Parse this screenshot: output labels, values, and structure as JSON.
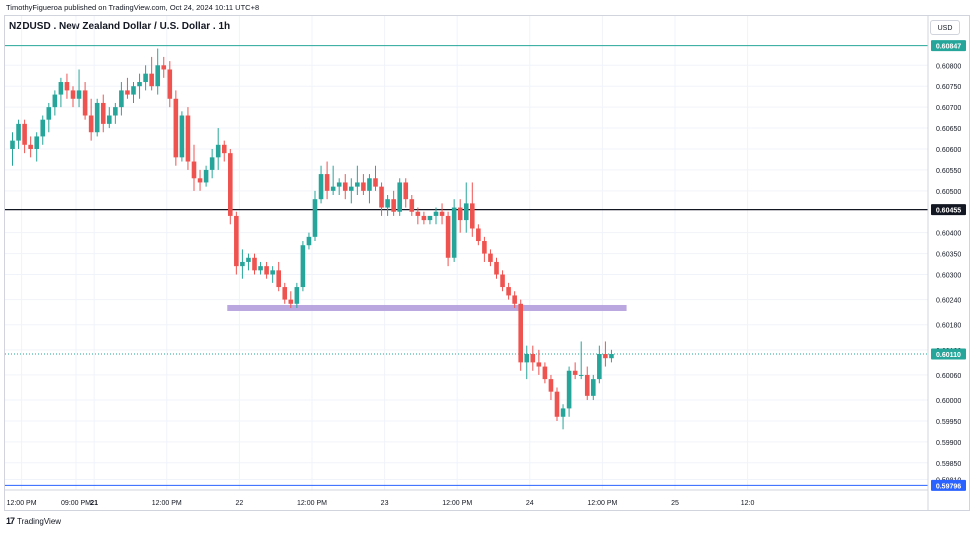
{
  "header": {
    "publisher_line": "TimothyFigueroa published on TradingView.com, Oct 24, 2024 10:11 UTC+8",
    "symbol_title": "NZDUSD . New Zealand Dollar / U.S. Dollar . 1h",
    "currency_button": "USD"
  },
  "footer": {
    "brand": "TradingView",
    "brand_icon": "tradingview-logo-icon"
  },
  "colors": {
    "up": "#26a69a",
    "down": "#ef5350",
    "level_green": "#26a69a",
    "level_black": "#131722",
    "zone": "#b39ddb",
    "price_line": "#26a69a",
    "bottom_line": "#2962ff"
  },
  "chart_data": {
    "type": "candlestick",
    "symbol": "NZDUSD",
    "timeframe": "1h",
    "ylim": [
      0.59785,
      0.6087
    ],
    "y_ticks": [
      {
        "value": 0.608,
        "label": "0.60800"
      },
      {
        "value": 0.6075,
        "label": "0.60750"
      },
      {
        "value": 0.607,
        "label": "0.60700"
      },
      {
        "value": 0.6065,
        "label": "0.60650"
      },
      {
        "value": 0.606,
        "label": "0.60600"
      },
      {
        "value": 0.6055,
        "label": "0.60550"
      },
      {
        "value": 0.605,
        "label": "0.60500"
      },
      {
        "value": 0.604,
        "label": "0.60400"
      },
      {
        "value": 0.6035,
        "label": "0.60350"
      },
      {
        "value": 0.603,
        "label": "0.60300"
      },
      {
        "value": 0.6024,
        "label": "0.60240"
      },
      {
        "value": 0.6018,
        "label": "0.60180"
      },
      {
        "value": 0.6012,
        "label": "0.60120"
      },
      {
        "value": 0.6006,
        "label": "0.60060"
      },
      {
        "value": 0.6,
        "label": "0.60000"
      },
      {
        "value": 0.5995,
        "label": "0.59950"
      },
      {
        "value": 0.599,
        "label": "0.59900"
      },
      {
        "value": 0.5985,
        "label": "0.59850"
      },
      {
        "value": 0.5981,
        "label": "0.59810"
      }
    ],
    "x_ticks": [
      {
        "bar": 1.5,
        "label": "12:00 PM",
        "bold": false
      },
      {
        "bar": 10.5,
        "label": "09:00 PM",
        "bold": false
      },
      {
        "bar": 13.5,
        "label": "21",
        "bold": true
      },
      {
        "bar": 25.5,
        "label": "12:00 PM",
        "bold": false
      },
      {
        "bar": 37.5,
        "label": "22",
        "bold": false
      },
      {
        "bar": 49.5,
        "label": "12:00 PM",
        "bold": false
      },
      {
        "bar": 61.5,
        "label": "23",
        "bold": false
      },
      {
        "bar": 73.5,
        "label": "12:00 PM",
        "bold": false
      },
      {
        "bar": 85.5,
        "label": "24",
        "bold": false
      },
      {
        "bar": 97.5,
        "label": "12:00 PM",
        "bold": false
      },
      {
        "bar": 109.5,
        "label": "25",
        "bold": false
      },
      {
        "bar": 121.5,
        "label": "12:0",
        "bold": false
      }
    ],
    "levels": [
      {
        "name": "resistance-level",
        "value": 0.60847,
        "label": "0.60847",
        "color": "#26a69a",
        "style": "solid"
      },
      {
        "name": "pivot-level",
        "value": 0.60455,
        "label": "0.60455",
        "color": "#131722",
        "style": "solid"
      },
      {
        "name": "last-price",
        "value": 0.6011,
        "label": "0.60110",
        "color": "#26a69a",
        "style": "dotted"
      },
      {
        "name": "low-level",
        "value": 0.59796,
        "label": "0.59796",
        "color": "#2962ff",
        "style": "solid"
      }
    ],
    "zone": {
      "value": 0.6022,
      "bar_start": 35.5,
      "bar_end": 101.5
    },
    "candles": [
      [
        0.606,
        0.6064,
        0.6056,
        0.6062
      ],
      [
        0.6062,
        0.6067,
        0.606,
        0.6066
      ],
      [
        0.6066,
        0.6067,
        0.6059,
        0.6061
      ],
      [
        0.6061,
        0.6063,
        0.6058,
        0.606
      ],
      [
        0.606,
        0.6064,
        0.6057,
        0.6063
      ],
      [
        0.6063,
        0.6068,
        0.6061,
        0.6067
      ],
      [
        0.6067,
        0.6071,
        0.6064,
        0.607
      ],
      [
        0.607,
        0.6074,
        0.6068,
        0.6073
      ],
      [
        0.6073,
        0.6077,
        0.607,
        0.6076
      ],
      [
        0.6076,
        0.6078,
        0.6072,
        0.6074
      ],
      [
        0.6074,
        0.6075,
        0.607,
        0.6072
      ],
      [
        0.6072,
        0.6079,
        0.607,
        0.6074
      ],
      [
        0.6074,
        0.6076,
        0.6067,
        0.6068
      ],
      [
        0.6068,
        0.6072,
        0.6062,
        0.6064
      ],
      [
        0.6064,
        0.6072,
        0.6063,
        0.6071
      ],
      [
        0.6071,
        0.6073,
        0.6064,
        0.6066
      ],
      [
        0.6066,
        0.607,
        0.6065,
        0.6068
      ],
      [
        0.6068,
        0.6071,
        0.6066,
        0.607
      ],
      [
        0.607,
        0.6076,
        0.6068,
        0.6074
      ],
      [
        0.6074,
        0.6077,
        0.6072,
        0.6073
      ],
      [
        0.6073,
        0.6076,
        0.6071,
        0.6075
      ],
      [
        0.6075,
        0.6078,
        0.6072,
        0.6076
      ],
      [
        0.6076,
        0.608,
        0.6074,
        0.6078
      ],
      [
        0.6078,
        0.6082,
        0.6074,
        0.6075
      ],
      [
        0.6075,
        0.6084,
        0.6073,
        0.608
      ],
      [
        0.608,
        0.6082,
        0.6077,
        0.6079
      ],
      [
        0.6079,
        0.6081,
        0.607,
        0.6072
      ],
      [
        0.6072,
        0.6074,
        0.6056,
        0.6058
      ],
      [
        0.6058,
        0.6069,
        0.6057,
        0.6068
      ],
      [
        0.6068,
        0.607,
        0.6055,
        0.6057
      ],
      [
        0.6057,
        0.6061,
        0.605,
        0.6053
      ],
      [
        0.6053,
        0.6055,
        0.605,
        0.6052
      ],
      [
        0.6052,
        0.6056,
        0.6051,
        0.6055
      ],
      [
        0.6055,
        0.606,
        0.6053,
        0.6058
      ],
      [
        0.6058,
        0.6065,
        0.6055,
        0.6061
      ],
      [
        0.6061,
        0.6062,
        0.6057,
        0.6059
      ],
      [
        0.6059,
        0.606,
        0.6042,
        0.6044
      ],
      [
        0.6044,
        0.6045,
        0.603,
        0.6032
      ],
      [
        0.6032,
        0.6036,
        0.6029,
        0.6033
      ],
      [
        0.6033,
        0.6035,
        0.6031,
        0.6034
      ],
      [
        0.6034,
        0.6035,
        0.603,
        0.6031
      ],
      [
        0.6031,
        0.6033,
        0.603,
        0.6032
      ],
      [
        0.6032,
        0.6033,
        0.6029,
        0.603
      ],
      [
        0.603,
        0.6032,
        0.6028,
        0.6031
      ],
      [
        0.6031,
        0.6033,
        0.6026,
        0.6027
      ],
      [
        0.6027,
        0.6028,
        0.6023,
        0.6024
      ],
      [
        0.6024,
        0.6026,
        0.6022,
        0.6023
      ],
      [
        0.6023,
        0.6028,
        0.6022,
        0.6027
      ],
      [
        0.6027,
        0.6038,
        0.6026,
        0.6037
      ],
      [
        0.6037,
        0.604,
        0.6036,
        0.6039
      ],
      [
        0.6039,
        0.605,
        0.6038,
        0.6048
      ],
      [
        0.6048,
        0.6056,
        0.6047,
        0.6054
      ],
      [
        0.6054,
        0.6057,
        0.6048,
        0.605
      ],
      [
        0.605,
        0.6056,
        0.6049,
        0.6051
      ],
      [
        0.6051,
        0.6053,
        0.6049,
        0.6052
      ],
      [
        0.6052,
        0.6054,
        0.6048,
        0.605
      ],
      [
        0.605,
        0.6053,
        0.6047,
        0.6051
      ],
      [
        0.6051,
        0.6056,
        0.6049,
        0.6052
      ],
      [
        0.6052,
        0.6054,
        0.6049,
        0.605
      ],
      [
        0.605,
        0.6054,
        0.6047,
        0.6053
      ],
      [
        0.6053,
        0.6056,
        0.605,
        0.6051
      ],
      [
        0.6051,
        0.6052,
        0.6044,
        0.6046
      ],
      [
        0.6046,
        0.6049,
        0.6044,
        0.6048
      ],
      [
        0.6048,
        0.605,
        0.6044,
        0.6045
      ],
      [
        0.6045,
        0.6053,
        0.6044,
        0.6052
      ],
      [
        0.6052,
        0.6053,
        0.6046,
        0.6048
      ],
      [
        0.6048,
        0.6049,
        0.6044,
        0.6045
      ],
      [
        0.6045,
        0.6046,
        0.6042,
        0.6044
      ],
      [
        0.6044,
        0.6045,
        0.6042,
        0.6043
      ],
      [
        0.6043,
        0.6044,
        0.6042,
        0.6044
      ],
      [
        0.6044,
        0.6046,
        0.6042,
        0.6045
      ],
      [
        0.6045,
        0.6047,
        0.6042,
        0.6044
      ],
      [
        0.6044,
        0.6045,
        0.6032,
        0.6034
      ],
      [
        0.6034,
        0.6048,
        0.6033,
        0.6046
      ],
      [
        0.6046,
        0.6048,
        0.604,
        0.6043
      ],
      [
        0.6043,
        0.6052,
        0.604,
        0.6047
      ],
      [
        0.6047,
        0.6052,
        0.6039,
        0.6041
      ],
      [
        0.6041,
        0.6042,
        0.6037,
        0.6038
      ],
      [
        0.6038,
        0.6039,
        0.6033,
        0.6035
      ],
      [
        0.6035,
        0.6036,
        0.6032,
        0.6033
      ],
      [
        0.6033,
        0.6034,
        0.6029,
        0.603
      ],
      [
        0.603,
        0.6031,
        0.6026,
        0.6027
      ],
      [
        0.6027,
        0.6028,
        0.6024,
        0.6025
      ],
      [
        0.6025,
        0.6026,
        0.6022,
        0.6023
      ],
      [
        0.6023,
        0.6024,
        0.6007,
        0.6009
      ],
      [
        0.6009,
        0.6013,
        0.6005,
        0.6011
      ],
      [
        0.6011,
        0.6013,
        0.6007,
        0.6009
      ],
      [
        0.6009,
        0.6012,
        0.6006,
        0.6008
      ],
      [
        0.6008,
        0.6009,
        0.6004,
        0.6005
      ],
      [
        0.6005,
        0.6006,
        0.6,
        0.6002
      ],
      [
        0.6002,
        0.6003,
        0.5995,
        0.5996
      ],
      [
        0.5996,
        0.5999,
        0.5993,
        0.5998
      ],
      [
        0.5998,
        0.6008,
        0.5996,
        0.6007
      ],
      [
        0.6007,
        0.6009,
        0.6005,
        0.6006
      ],
      [
        0.6006,
        0.6014,
        0.6005,
        0.6006
      ],
      [
        0.6006,
        0.6008,
        0.6,
        0.6001
      ],
      [
        0.6001,
        0.6006,
        0.6,
        0.6005
      ],
      [
        0.6005,
        0.6013,
        0.6004,
        0.6011
      ],
      [
        0.6011,
        0.6014,
        0.6008,
        0.601
      ],
      [
        0.601,
        0.6012,
        0.6009,
        0.6011
      ]
    ]
  }
}
